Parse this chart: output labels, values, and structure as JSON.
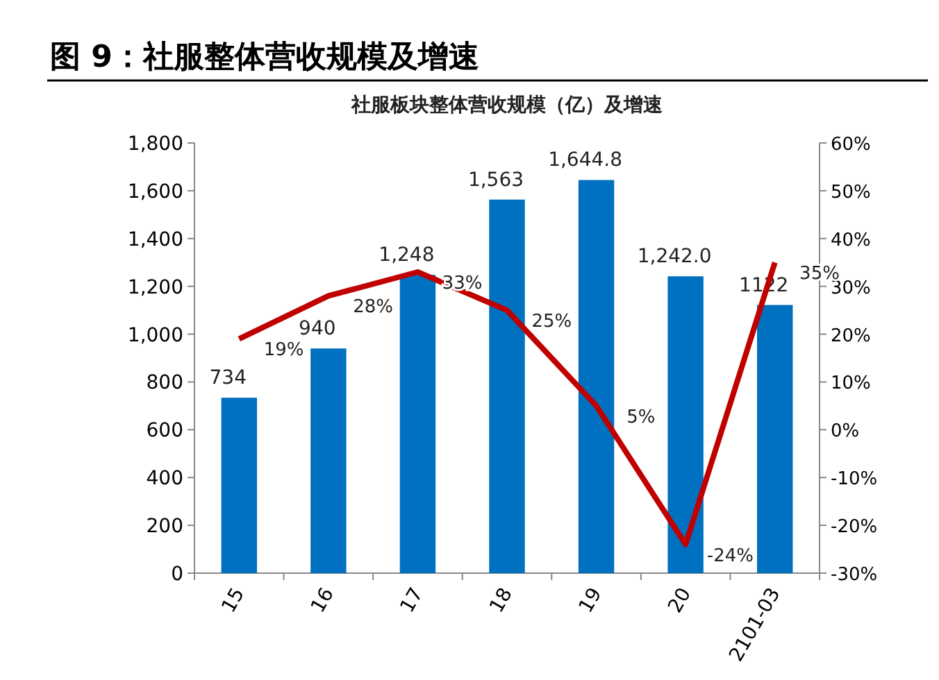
{
  "chart_data": {
    "type": "bar",
    "title": "图 9：社服整体营收规模及增速",
    "subtitle": "社服板块整体营收规模（亿）及增速",
    "categories": [
      "15",
      "16",
      "17",
      "18",
      "19",
      "20",
      "2101-03"
    ],
    "series": [
      {
        "color": "#0070c0",
        "values": [
          734,
          940,
          1248,
          1563,
          1644.8,
          1242.0,
          1122
        ],
        "value_labels": [
          "734",
          "940",
          "1,248",
          "1,563",
          "1,644.8",
          "1,242.0",
          "1122"
        ]
      },
      {
        "type": "line",
        "axis": "y2",
        "color": "#c00000",
        "values": [
          19,
          28,
          33,
          25,
          5,
          -24,
          35
        ],
        "value_labels": [
          "19%",
          "28%",
          "33%",
          "25%",
          "5%",
          "-24%",
          "35%"
        ]
      }
    ],
    "ylim": [
      0,
      1800
    ],
    "yticks": [
      0,
      {
        "value": 200,
        "label": "200"
      },
      {
        "value": 400,
        "label": "400"
      },
      {
        "value": 600,
        "label": "600"
      },
      {
        "value": 800,
        "label": "800"
      },
      {
        "value": 1000,
        "label": "1,000"
      },
      {
        "value": 1200,
        "label": "1,200"
      },
      {
        "value": 1400,
        "label": "1,400"
      },
      {
        "value": 1600,
        "label": "1,600"
      },
      {
        "value": 1800,
        "label": "1,800"
      }
    ],
    "y2lim": [
      -30,
      60
    ],
    "y2ticks": [
      {
        "value": -30,
        "label": "-30%"
      },
      {
        "value": -20,
        "label": "-20%"
      },
      {
        "value": -10,
        "label": "-10%"
      },
      {
        "value": 0,
        "label": "0%"
      },
      {
        "value": 10,
        "label": "10%"
      },
      {
        "value": 20,
        "label": "20%"
      },
      {
        "value": 30,
        "label": "30%"
      },
      {
        "value": 40,
        "label": "40%"
      },
      {
        "value": 50,
        "label": "50%"
      },
      {
        "value": 60,
        "label": "60%"
      }
    ],
    "grid": false
  }
}
